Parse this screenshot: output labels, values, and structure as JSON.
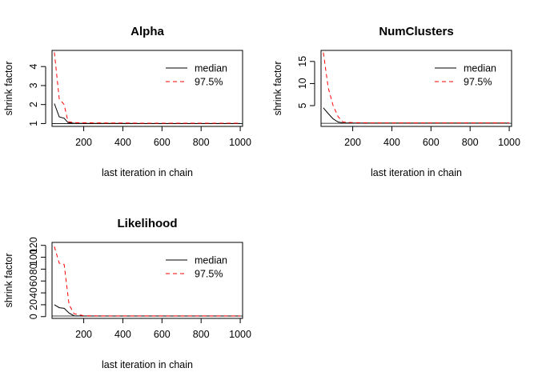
{
  "chart_data": [
    {
      "type": "line",
      "title": "Alpha",
      "xlabel": "last iteration in chain",
      "ylabel": "shrink factor",
      "xlim": [
        38,
        1012
      ],
      "ylim": [
        0.85,
        4.85
      ],
      "xticks": [
        200,
        400,
        600,
        800,
        1000
      ],
      "yticks": [
        1,
        2,
        3,
        4
      ],
      "reference_line": 1,
      "legend": {
        "position": "top-right",
        "entries": [
          "median",
          "97.5%"
        ]
      },
      "series": [
        {
          "name": "median",
          "color": "#000000",
          "dash": "solid",
          "x": [
            50,
            75,
            100,
            120,
            150,
            200,
            300,
            400,
            500,
            600,
            700,
            800,
            900,
            1000
          ],
          "y": [
            2.05,
            1.35,
            1.28,
            1.05,
            1.02,
            1.01,
            1.01,
            1.01,
            1.0,
            1.0,
            1.0,
            1.0,
            1.0,
            1.0
          ]
        },
        {
          "name": "97.5%",
          "color": "#ff0000",
          "dash": "dashed",
          "x": [
            50,
            75,
            100,
            120,
            150,
            200,
            300,
            400,
            500,
            600,
            700,
            800,
            900,
            1000
          ],
          "y": [
            4.75,
            2.3,
            2.0,
            1.1,
            1.05,
            1.04,
            1.03,
            1.03,
            1.02,
            1.02,
            1.02,
            1.02,
            1.02,
            1.02
          ]
        }
      ]
    },
    {
      "type": "line",
      "title": "NumClusters",
      "xlabel": "last iteration in chain",
      "ylabel": "shrink factor",
      "xlim": [
        38,
        1012
      ],
      "ylim": [
        0.3,
        17.5
      ],
      "xticks": [
        200,
        400,
        600,
        800,
        1000
      ],
      "yticks": [
        5,
        10,
        15
      ],
      "reference_line": 1,
      "legend": {
        "position": "top-right",
        "entries": [
          "median",
          "97.5%"
        ]
      },
      "series": [
        {
          "name": "median",
          "color": "#000000",
          "dash": "solid",
          "x": [
            50,
            75,
            100,
            125,
            150,
            200,
            300,
            400,
            500,
            600,
            700,
            800,
            900,
            1000
          ],
          "y": [
            4.5,
            3.2,
            2.0,
            1.3,
            1.1,
            1.05,
            1.05,
            1.05,
            1.05,
            1.05,
            1.05,
            1.05,
            1.05,
            1.05
          ]
        },
        {
          "name": "97.5%",
          "color": "#ff0000",
          "dash": "dashed",
          "x": [
            50,
            75,
            100,
            125,
            150,
            200,
            300,
            400,
            500,
            600,
            700,
            800,
            900,
            1000
          ],
          "y": [
            17.0,
            9.0,
            5.0,
            2.5,
            1.3,
            1.15,
            1.1,
            1.1,
            1.1,
            1.1,
            1.1,
            1.1,
            1.1,
            1.1
          ]
        }
      ]
    },
    {
      "type": "line",
      "title": "Likelihood",
      "xlabel": "last iteration in chain",
      "ylabel": "shrink factor",
      "xlim": [
        38,
        1012
      ],
      "ylim": [
        -3,
        125
      ],
      "xticks": [
        200,
        400,
        600,
        800,
        1000
      ],
      "yticks": [
        0,
        20,
        40,
        60,
        80,
        100,
        120
      ],
      "reference_line": 1,
      "legend": {
        "position": "top-right",
        "entries": [
          "median",
          "97.5%"
        ]
      },
      "series": [
        {
          "name": "median",
          "color": "#000000",
          "dash": "solid",
          "x": [
            50,
            75,
            100,
            125,
            150,
            200,
            300,
            400,
            500,
            600,
            700,
            800,
            900,
            1000
          ],
          "y": [
            20,
            15,
            14,
            6,
            1.5,
            1.1,
            1.05,
            1.05,
            1.05,
            1.05,
            1.05,
            1.05,
            1.05,
            1.05
          ]
        },
        {
          "name": "97.5%",
          "color": "#ff0000",
          "dash": "dashed",
          "x": [
            50,
            75,
            100,
            125,
            150,
            200,
            300,
            400,
            500,
            600,
            700,
            800,
            900,
            1000
          ],
          "y": [
            118,
            90,
            88,
            20,
            5,
            1.5,
            1.2,
            1.2,
            1.2,
            1.2,
            1.2,
            1.2,
            1.2,
            1.2
          ]
        }
      ]
    }
  ]
}
